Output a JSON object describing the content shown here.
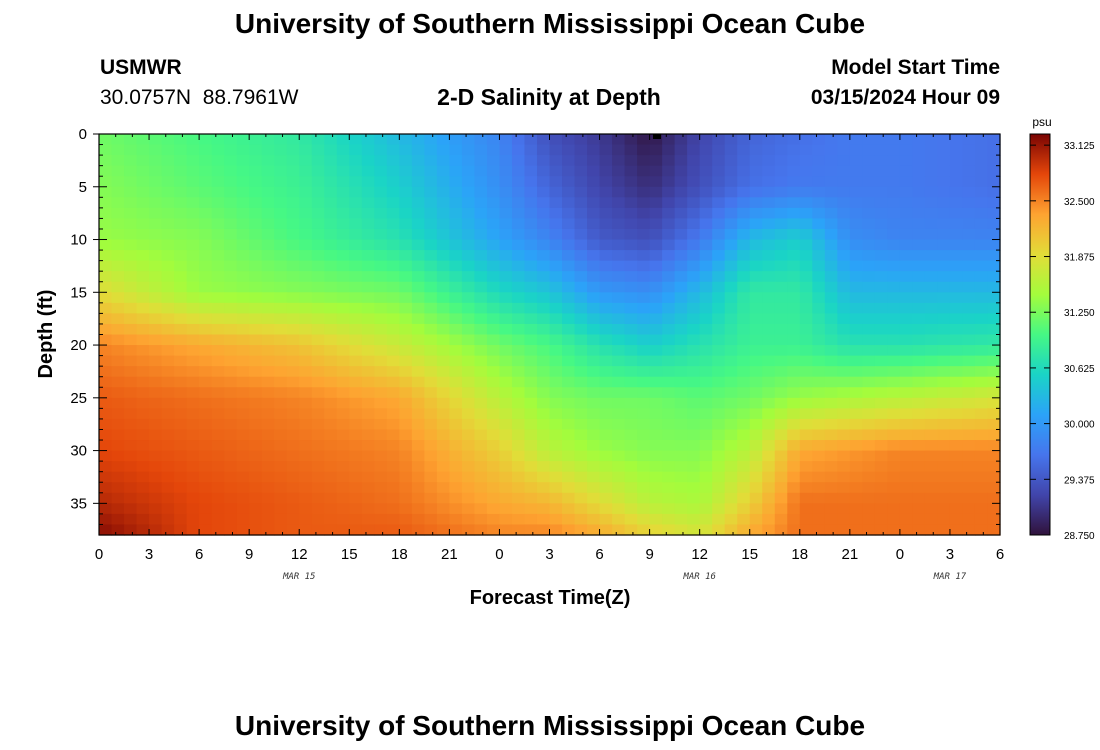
{
  "header": {
    "title": "University of Southern Mississippi Ocean Cube",
    "station_id": "USMWR",
    "coords": "30.0757N  88.7961W",
    "plot_title": "2-D Salinity at Depth",
    "model_label": "Model Start Time",
    "model_time": "03/15/2024 Hour 09"
  },
  "footer": {
    "title": "University of Southern Mississippi Ocean Cube"
  },
  "chart_data": {
    "type": "heatmap",
    "title": "2-D Salinity at Depth",
    "xlabel": "Forecast Time(Z)",
    "ylabel": "Depth (ft)",
    "x_ticks": [
      "0",
      "3",
      "6",
      "9",
      "12",
      "15",
      "18",
      "21",
      "0",
      "3",
      "6",
      "9",
      "12",
      "15",
      "18",
      "21",
      "0",
      "3",
      "6"
    ],
    "x_hours": [
      0,
      3,
      6,
      9,
      12,
      15,
      18,
      21,
      24,
      27,
      30,
      33,
      36,
      39,
      42,
      45,
      48,
      51,
      54
    ],
    "date_labels": [
      {
        "label": "MAR 15",
        "hour": 12
      },
      {
        "label": "MAR 16",
        "hour": 36
      },
      {
        "label": "MAR 17",
        "hour": 51
      }
    ],
    "y_ticks": [
      0,
      5,
      10,
      15,
      20,
      25,
      30,
      35
    ],
    "xlim": [
      0,
      54
    ],
    "ylim": [
      0,
      38
    ],
    "colorbar": {
      "unit": "psu",
      "ticks": [
        "33.125",
        "32.500",
        "31.875",
        "31.250",
        "30.625",
        "30.000",
        "29.375",
        "28.750"
      ],
      "min": 28.75,
      "max": 33.25
    },
    "salinity_field": {
      "hours": [
        0,
        6,
        12,
        18,
        24,
        27,
        30,
        33,
        36,
        39,
        42,
        45,
        48,
        54
      ],
      "depths": [
        0,
        5,
        10,
        15,
        20,
        25,
        30,
        35,
        38
      ],
      "values": [
        [
          31.2,
          31.0,
          30.8,
          30.3,
          29.8,
          29.3,
          29.1,
          28.8,
          29.2,
          29.5,
          29.6,
          29.7,
          29.7,
          29.6
        ],
        [
          31.3,
          31.1,
          30.9,
          30.5,
          29.9,
          29.5,
          29.2,
          29.0,
          29.3,
          29.6,
          29.7,
          29.7,
          29.7,
          29.6
        ],
        [
          31.4,
          31.3,
          31.0,
          30.7,
          30.1,
          29.8,
          29.4,
          29.3,
          29.7,
          30.3,
          30.5,
          29.9,
          29.8,
          29.8
        ],
        [
          31.9,
          31.4,
          31.3,
          31.2,
          30.6,
          30.4,
          30.0,
          29.9,
          30.3,
          30.8,
          30.8,
          30.3,
          30.3,
          30.3
        ],
        [
          32.5,
          32.3,
          32.1,
          31.7,
          31.2,
          31.0,
          30.7,
          30.5,
          30.7,
          30.9,
          30.9,
          30.7,
          30.7,
          30.8
        ],
        [
          32.7,
          32.6,
          32.5,
          32.3,
          31.6,
          31.3,
          31.2,
          31.2,
          31.1,
          31.2,
          31.4,
          31.5,
          31.6,
          31.8
        ],
        [
          32.8,
          32.7,
          32.6,
          32.5,
          32.0,
          31.6,
          31.4,
          31.3,
          31.3,
          31.6,
          32.3,
          32.4,
          32.5,
          32.5
        ],
        [
          33.0,
          32.8,
          32.7,
          32.6,
          32.3,
          32.2,
          31.9,
          31.6,
          31.5,
          32.0,
          32.6,
          32.6,
          32.6,
          32.6
        ],
        [
          33.2,
          32.8,
          32.7,
          32.7,
          32.5,
          32.5,
          32.3,
          32.0,
          31.8,
          32.3,
          32.6,
          32.6,
          32.6,
          32.6
        ]
      ]
    }
  }
}
